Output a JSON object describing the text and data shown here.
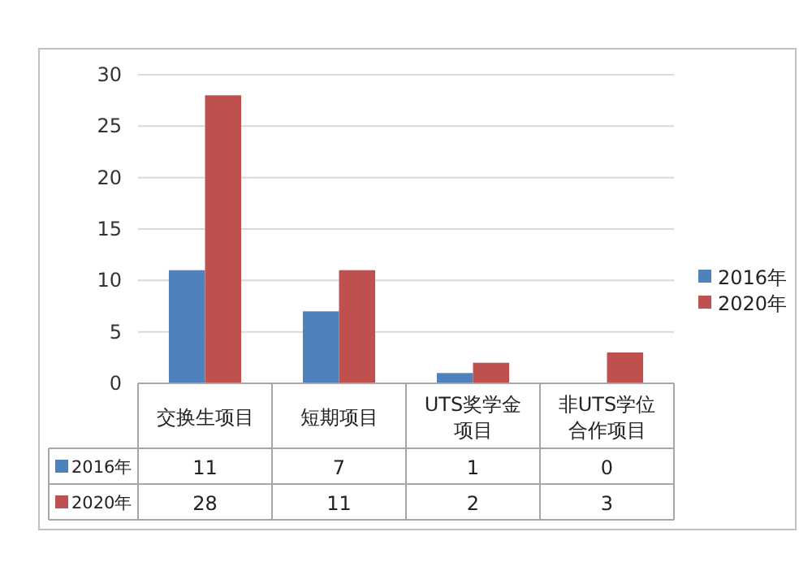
{
  "chart_data": {
    "type": "bar",
    "categories": [
      "交换生项目",
      "短期项目",
      "UTS奖学金项目",
      "非UTS学位合作项目"
    ],
    "series": [
      {
        "name": "2016年",
        "color": "#4f81bd",
        "values": [
          11,
          7,
          1,
          0
        ]
      },
      {
        "name": "2020年",
        "color": "#c0504d",
        "values": [
          28,
          11,
          2,
          3
        ]
      }
    ],
    "ylim": [
      0,
      30
    ],
    "yticks": [
      0,
      5,
      10,
      15,
      20,
      25,
      30
    ],
    "grid": "y",
    "legend": "right",
    "data_labels": true
  }
}
